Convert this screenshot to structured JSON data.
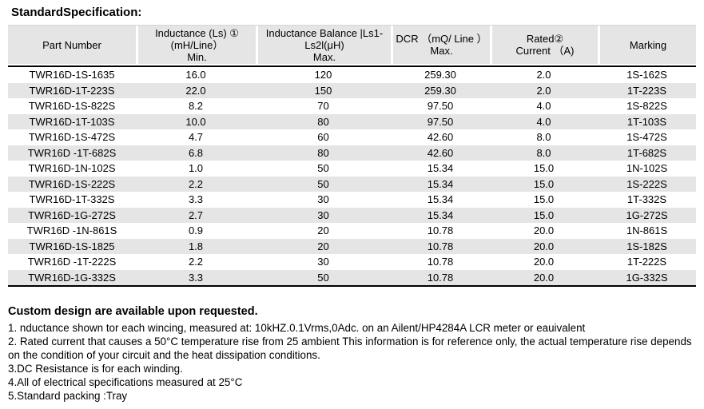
{
  "title": "StandardSpecification:",
  "table": {
    "headers": [
      [
        "Part Number"
      ],
      [
        "Inductance (Ls) ①",
        "(mH/Line）",
        "Min."
      ],
      [
        "Inductance Balance |Ls1-",
        "Ls2l(μH)",
        "Max."
      ],
      [
        "DCR （mQ/ Line ）",
        "Max."
      ],
      [
        "Rated②",
        "Current （A)"
      ],
      [
        "Marking"
      ]
    ],
    "rows": [
      [
        "TWR16D-1S-1635",
        "16.0",
        "120",
        "259.30",
        "2.0",
        "1S-162S"
      ],
      [
        "TWR16D-1T-223S",
        "22.0",
        "150",
        "259.30",
        "2.0",
        "1T-223S"
      ],
      [
        "TWR16D-1S-822S",
        "8.2",
        "70",
        "97.50",
        "4.0",
        "1S-822S"
      ],
      [
        "TWR16D-1T-103S",
        "10.0",
        "80",
        "97.50",
        "4.0",
        "1T-103S"
      ],
      [
        "TWR16D-1S-472S",
        "4.7",
        "60",
        "42.60",
        "8.0",
        "1S-472S"
      ],
      [
        "TWR16D -1T-682S",
        "6.8",
        "80",
        "42.60",
        "8.0",
        "1T-682S"
      ],
      [
        "TWR16D-1N-102S",
        "1.0",
        "50",
        "15.34",
        "15.0",
        "1N-102S"
      ],
      [
        "TWR16D-1S-222S",
        "2.2",
        "50",
        "15.34",
        "15.0",
        "1S-222S"
      ],
      [
        "TWR16D-1T-332S",
        "3.3",
        "30",
        "15.34",
        "15.0",
        "1T-332S"
      ],
      [
        "TWR16D-1G-272S",
        "2.7",
        "30",
        "15.34",
        "15.0",
        "1G-272S"
      ],
      [
        "TWR16D -1N-861S",
        "0.9",
        "20",
        "10.78",
        "20.0",
        "1N-861S"
      ],
      [
        "TWR16D-1S-1825",
        "1.8",
        "20",
        "10.78",
        "20.0",
        "1S-182S"
      ],
      [
        "TWR16D -1T-222S",
        "2.2",
        "30",
        "10.78",
        "20.0",
        "1T-222S"
      ],
      [
        "TWR16D-1G-332S",
        "3.3",
        "50",
        "10.78",
        "20.0",
        "1G-332S"
      ]
    ]
  },
  "notes": {
    "bold_line": "Custom design are available upon requested.",
    "items": [
      "1. nductance shown tor each wincing, measured at: 10kHZ.0.1Vrms,0Adc. on an Ailent/HP4284A LCR meter or eauivalent",
      "2. Rated current that causes a 50°C temperature rise from 25 ambient This information is for reference only, the actual temperature rise depends on the condition of your circuit and the heat dissipation conditions.",
      "3.DC Resistance is for each winding.",
      "4.All of electrical specifications measured at 25°C",
      "5.Standard packing :Tray"
    ]
  },
  "colors": {
    "header_bg": "#e5e5e5",
    "stripe_bg": "#e5e5e5",
    "rule": "#000000"
  }
}
